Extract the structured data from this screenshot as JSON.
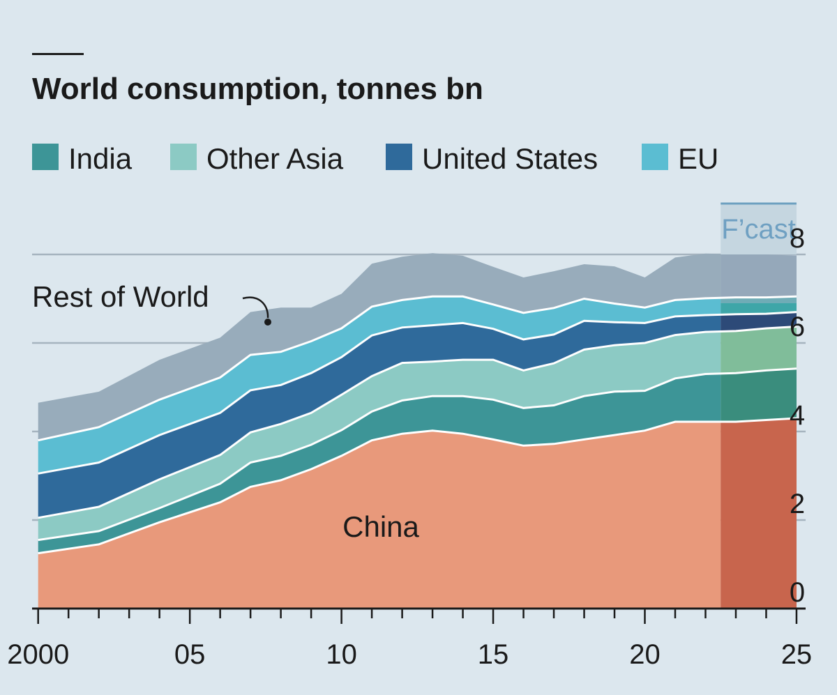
{
  "chart_data": {
    "type": "area",
    "title": "World consumption, tonnes bn",
    "x": [
      2000,
      2002,
      2004,
      2006,
      2007,
      2008,
      2009,
      2010,
      2011,
      2012,
      2013,
      2014,
      2015,
      2016,
      2017,
      2018,
      2019,
      2020,
      2021,
      2022,
      2023,
      2024,
      2025
    ],
    "series": [
      {
        "name": "China",
        "color": "#e8997b",
        "forecast_color": "#c8654d",
        "values": [
          1.25,
          1.45,
          1.95,
          2.4,
          2.75,
          2.9,
          3.15,
          3.45,
          3.8,
          3.95,
          4.02,
          3.95,
          3.82,
          3.68,
          3.72,
          3.82,
          3.92,
          4.02,
          4.22,
          4.22,
          4.22,
          4.26,
          4.3
        ]
      },
      {
        "name": "India",
        "color": "#3d9597",
        "forecast_color": "#3a8d7d",
        "values": [
          0.3,
          0.3,
          0.32,
          0.42,
          0.55,
          0.55,
          0.55,
          0.58,
          0.65,
          0.75,
          0.78,
          0.85,
          0.9,
          0.85,
          0.87,
          0.98,
          0.98,
          0.9,
          0.98,
          1.08,
          1.1,
          1.12,
          1.12
        ]
      },
      {
        "name": "Other Asia",
        "color": "#8ccac4",
        "forecast_color": "#80bd9a",
        "values": [
          0.5,
          0.55,
          0.65,
          0.65,
          0.68,
          0.72,
          0.72,
          0.8,
          0.8,
          0.85,
          0.78,
          0.82,
          0.9,
          0.85,
          0.95,
          1.05,
          1.05,
          1.08,
          0.98,
          0.95,
          0.95,
          0.95,
          0.95
        ]
      },
      {
        "name": "United States",
        "color": "#2f6a9b",
        "forecast_color": "#2d4a78",
        "values": [
          1.0,
          1.0,
          1.0,
          0.95,
          0.95,
          0.88,
          0.9,
          0.85,
          0.92,
          0.8,
          0.82,
          0.83,
          0.7,
          0.7,
          0.65,
          0.65,
          0.52,
          0.45,
          0.42,
          0.38,
          0.38,
          0.33,
          0.33
        ]
      },
      {
        "name": "EU",
        "color": "#5bbdd2",
        "forecast_color": "#3ea6a8",
        "values": [
          0.75,
          0.8,
          0.8,
          0.8,
          0.8,
          0.75,
          0.72,
          0.65,
          0.65,
          0.62,
          0.65,
          0.6,
          0.55,
          0.6,
          0.6,
          0.5,
          0.42,
          0.35,
          0.37,
          0.38,
          0.38,
          0.37,
          0.35
        ]
      },
      {
        "name": "Rest of World",
        "color": "#98acbb",
        "forecast_color": "#8a9eb0",
        "values": [
          0.85,
          0.8,
          0.9,
          0.9,
          0.97,
          1.0,
          0.76,
          0.78,
          0.97,
          0.98,
          0.98,
          0.92,
          0.85,
          0.8,
          0.83,
          0.78,
          0.84,
          0.68,
          0.96,
          1.01,
          0.97,
          0.97,
          0.92
        ]
      }
    ],
    "legend": [
      "India",
      "Other Asia",
      "United States",
      "EU"
    ],
    "annotations": {
      "china": "China",
      "rest_of_world": "Rest of World"
    },
    "forecast": {
      "label": "F’cast",
      "start": 2022.5,
      "end": 2025
    },
    "xlim": [
      1999.8,
      2025.3
    ],
    "ylim": [
      0,
      8
    ],
    "yticks": [
      0,
      2,
      4,
      6,
      8
    ],
    "xticks": [
      {
        "value": 2000,
        "label": "2000"
      },
      {
        "value": 2005,
        "label": "05"
      },
      {
        "value": 2010,
        "label": "10"
      },
      {
        "value": 2015,
        "label": "15"
      },
      {
        "value": 2020,
        "label": "20"
      },
      {
        "value": 2025,
        "label": "25"
      }
    ],
    "grid": true,
    "ytick_side": "right",
    "legend_placement": "top"
  }
}
